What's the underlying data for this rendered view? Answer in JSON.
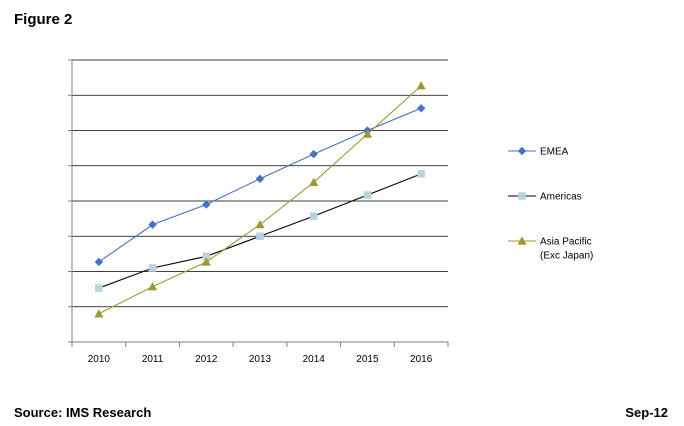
{
  "figure_title": "Figure 2",
  "source": "Source: IMS Research",
  "date": "Sep-12",
  "chart_data": {
    "type": "line",
    "title": "",
    "xlabel": "",
    "ylabel": "",
    "categories": [
      "2010",
      "2011",
      "2012",
      "2013",
      "2014",
      "2015",
      "2016"
    ],
    "ylim": [
      0,
      8
    ],
    "y_tick_labels": "none",
    "grid": "horizontal",
    "legend_position": "right",
    "series": [
      {
        "name": "EMEA",
        "color": "#4472C4",
        "marker": "diamond",
        "values": [
          2.27,
          3.33,
          3.9,
          4.63,
          5.33,
          6.0,
          6.63
        ]
      },
      {
        "name": "Americas",
        "color": "#000000",
        "marker_color": "#B9D3E0",
        "marker": "square",
        "values": [
          1.53,
          2.1,
          2.43,
          3.0,
          3.57,
          4.17,
          4.77
        ]
      },
      {
        "name": "Asia Pacific (Exc Japan)",
        "color": "#9C9A2E",
        "marker": "triangle",
        "values": [
          0.8,
          1.57,
          2.27,
          3.33,
          4.53,
          5.9,
          7.27
        ]
      }
    ],
    "legend_lines": [
      [
        "EMEA"
      ],
      [
        "Americas"
      ],
      [
        "Asia Pacific",
        "(Exc Japan)"
      ]
    ]
  }
}
